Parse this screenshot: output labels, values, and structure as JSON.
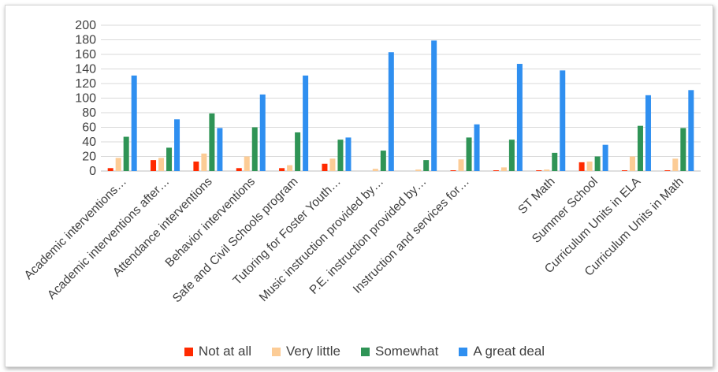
{
  "chart_data": {
    "type": "bar",
    "title": "",
    "xlabel": "",
    "ylabel": "",
    "ylim": [
      0,
      200
    ],
    "yticks": [
      0,
      20,
      40,
      60,
      80,
      100,
      120,
      140,
      160,
      180,
      200
    ],
    "grid": true,
    "legend_position": "bottom",
    "categories": [
      "Academic interventions…",
      "Academic interventions after…",
      "Attendance interventions",
      "Behavior interventions",
      "Safe and Civil Schools program",
      "Tutoring for Foster Youth…",
      "Music instruction provided by…",
      "P.E. instruction provided by…",
      "Instruction and services for…",
      "",
      "ST Math",
      "Summer School",
      "Curriculum Units in ELA",
      "Curriculum Units in Math"
    ],
    "series": [
      {
        "name": "Not at all",
        "color": "#ff2a00",
        "values": [
          4,
          15,
          13,
          4,
          4,
          10,
          0,
          0,
          1,
          1,
          1,
          12,
          1,
          1
        ]
      },
      {
        "name": "Very little",
        "color": "#fccc96",
        "values": [
          18,
          18,
          24,
          20,
          8,
          17,
          3,
          2,
          16,
          5,
          2,
          13,
          20,
          17
        ]
      },
      {
        "name": "Somewhat",
        "color": "#2f9456",
        "values": [
          47,
          32,
          79,
          60,
          53,
          43,
          28,
          15,
          46,
          43,
          25,
          20,
          62,
          59
        ]
      },
      {
        "name": "A great deal",
        "color": "#2f8ff0",
        "values": [
          131,
          71,
          59,
          105,
          131,
          46,
          163,
          179,
          64,
          147,
          138,
          36,
          104,
          111
        ]
      }
    ]
  }
}
